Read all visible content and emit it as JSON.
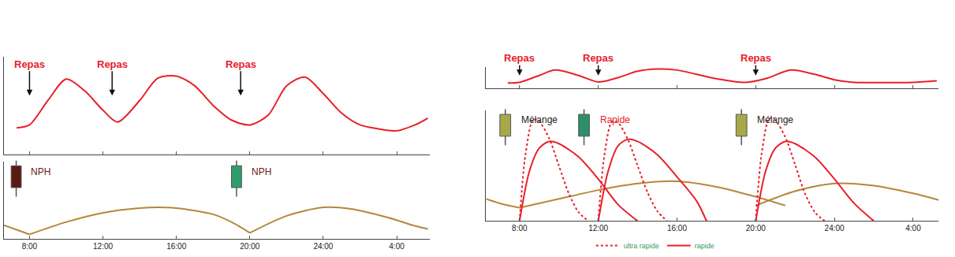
{
  "chart_data": [
    {
      "type": "line",
      "xlim": [
        6.6,
        29.8
      ],
      "xticks": [
        {
          "value": 8,
          "label": "8:00"
        },
        {
          "value": 12,
          "label": "12:00"
        },
        {
          "value": 16,
          "label": "16:00"
        },
        {
          "value": 20,
          "label": "20:00"
        },
        {
          "value": 24,
          "label": "24:00"
        },
        {
          "value": 28,
          "label": "4:00"
        }
      ],
      "ylim": [
        0,
        100
      ],
      "tick_labels": false,
      "annotations": [
        {
          "text": "Repas",
          "x": 8,
          "color": "#e8202a"
        },
        {
          "text": "Repas",
          "x": 12.5,
          "color": "#e8202a"
        },
        {
          "text": "Repas",
          "x": 19.5,
          "color": "#e8202a"
        }
      ],
      "series": [
        {
          "color": "#e8202a",
          "line_style": "solid",
          "x": [
            7.3,
            8,
            9,
            10,
            11,
            12,
            12.8,
            14,
            15,
            16,
            17,
            18,
            19,
            20,
            21,
            22,
            23,
            24,
            25,
            26,
            27,
            28,
            29,
            29.7
          ],
          "values": [
            27,
            30,
            55,
            77,
            65,
            45,
            33,
            55,
            78,
            80,
            70,
            50,
            35,
            30,
            40,
            70,
            79,
            62,
            42,
            30,
            26,
            24,
            30,
            37
          ]
        }
      ]
    },
    {
      "type": "line",
      "xlim": [
        6.6,
        29.8
      ],
      "xticks": [
        {
          "value": 8,
          "label": "8:00"
        },
        {
          "value": 12,
          "label": "12:00"
        },
        {
          "value": 16,
          "label": "16:00"
        },
        {
          "value": 20,
          "label": "20:00"
        },
        {
          "value": 24,
          "label": "24:00"
        },
        {
          "value": 28,
          "label": "4:00"
        }
      ],
      "ylim": [
        0,
        100
      ],
      "tick_labels": "x",
      "annotations": [
        {
          "text": "NPH",
          "x": 8,
          "color": "#6b1a12"
        },
        {
          "text": "NPH",
          "x": 20,
          "color": "#6b1a12"
        }
      ],
      "series": [
        {
          "color": "#b5873a",
          "line_style": "solid",
          "x": [
            6.6,
            7.3,
            8
          ],
          "values": [
            18,
            12,
            6
          ]
        },
        {
          "color": "#b5873a",
          "line_style": "solid",
          "x": [
            8,
            10,
            12,
            14,
            15,
            16,
            18,
            19,
            20
          ],
          "values": [
            6,
            22,
            34,
            40,
            41,
            40,
            32,
            22,
            8
          ]
        },
        {
          "color": "#b5873a",
          "line_style": "solid",
          "x": [
            20,
            22,
            24,
            25.5,
            27.5,
            29,
            29.7
          ],
          "values": [
            8,
            30,
            41,
            39,
            28,
            17,
            13
          ]
        }
      ]
    },
    {
      "type": "line",
      "xlim": [
        6.3,
        29.3
      ],
      "xticks": [
        {
          "value": 8,
          "label": "8:00"
        },
        {
          "value": 12,
          "label": "12:00"
        },
        {
          "value": 16,
          "label": "16:00"
        },
        {
          "value": 20,
          "label": "20:00"
        },
        {
          "value": 24,
          "label": "24:00"
        },
        {
          "value": 28,
          "label": "4:00"
        }
      ],
      "ylim": [
        0,
        100
      ],
      "tick_labels": false,
      "annotations": [
        {
          "text": "Repas",
          "x": 8,
          "color": "#e8202a"
        },
        {
          "text": "Repas",
          "x": 12,
          "color": "#e8202a"
        },
        {
          "text": "Repas",
          "x": 20,
          "color": "#e8202a"
        }
      ],
      "series": [
        {
          "color": "#e8202a",
          "line_style": "solid",
          "x": [
            7.4,
            8,
            9,
            9.8,
            11,
            12,
            13,
            14,
            15,
            16,
            17,
            18,
            19.5,
            20.5,
            21.8,
            23,
            24,
            25,
            26,
            27,
            28,
            29.2
          ],
          "values": [
            25,
            28,
            60,
            85,
            60,
            30,
            50,
            80,
            90,
            85,
            65,
            45,
            28,
            45,
            85,
            65,
            40,
            28,
            27,
            27,
            28,
            35
          ]
        }
      ]
    },
    {
      "type": "line",
      "xlim": [
        6.3,
        29.3
      ],
      "xticks": [
        {
          "value": 8,
          "label": "8:00"
        },
        {
          "value": 12,
          "label": "12:00"
        },
        {
          "value": 16,
          "label": "16:00"
        },
        {
          "value": 20,
          "label": "20:00"
        },
        {
          "value": 24,
          "label": "24:00"
        },
        {
          "value": 28,
          "label": "4:00"
        }
      ],
      "ylim": [
        0,
        100
      ],
      "tick_labels": "x",
      "legend": "bottom",
      "annotations": [
        {
          "text": "Mélange",
          "x": 8,
          "color": "#222222"
        },
        {
          "text": "Rapide",
          "x": 12,
          "color": "#e8202a"
        },
        {
          "text": "Mélange",
          "x": 20,
          "color": "#222222"
        }
      ],
      "series": [
        {
          "color": "#b5873a",
          "line_style": "solid",
          "x": [
            6.3,
            7,
            8
          ],
          "values": [
            20,
            16,
            12
          ]
        },
        {
          "color": "#b5873a",
          "line_style": "solid",
          "x": [
            8,
            10,
            12,
            14,
            16,
            18,
            20,
            21.5
          ],
          "values": [
            12,
            20,
            28,
            34,
            36,
            31,
            22,
            14
          ]
        },
        {
          "color": "#b5873a",
          "line_style": "solid",
          "x": [
            20,
            22,
            24,
            26,
            28,
            29.3
          ],
          "values": [
            14,
            27,
            34,
            32,
            25,
            19
          ]
        },
        {
          "name": "ultra rapide",
          "color": "#e8202a",
          "line_style": "dotted",
          "x": [
            8,
            8.3,
            8.7,
            9,
            9.5,
            10,
            10.5,
            11,
            11.5,
            11.8,
            12,
            12.3,
            12.7,
            13,
            13.5,
            14,
            14.5,
            15,
            15.5,
            16,
            20,
            20.3,
            20.7,
            21,
            21.5,
            22,
            22.5,
            23,
            23.5
          ],
          "values": [
            0,
            60,
            92,
            90,
            75,
            50,
            25,
            8,
            0,
            null,
            0,
            58,
            90,
            89,
            74,
            50,
            26,
            9,
            0,
            null,
            0,
            61,
            93,
            91,
            76,
            51,
            25,
            8,
            0
          ]
        },
        {
          "name": "rapide",
          "color": "#e8202a",
          "line_style": "solid",
          "x": [
            8,
            8.5,
            9,
            9.5,
            10,
            11,
            12,
            13,
            14,
            14,
            12,
            12.5,
            13,
            13.5,
            14,
            15,
            16,
            17,
            17.5,
            18,
            20,
            20.5,
            21,
            21.5,
            22,
            23,
            24,
            25,
            26
          ],
          "values": [
            0,
            45,
            66,
            72,
            70,
            58,
            38,
            15,
            0,
            null,
            0,
            45,
            68,
            74,
            72,
            60,
            40,
            18,
            0,
            null,
            0,
            45,
            66,
            72,
            70,
            58,
            38,
            16,
            0
          ]
        }
      ]
    }
  ]
}
